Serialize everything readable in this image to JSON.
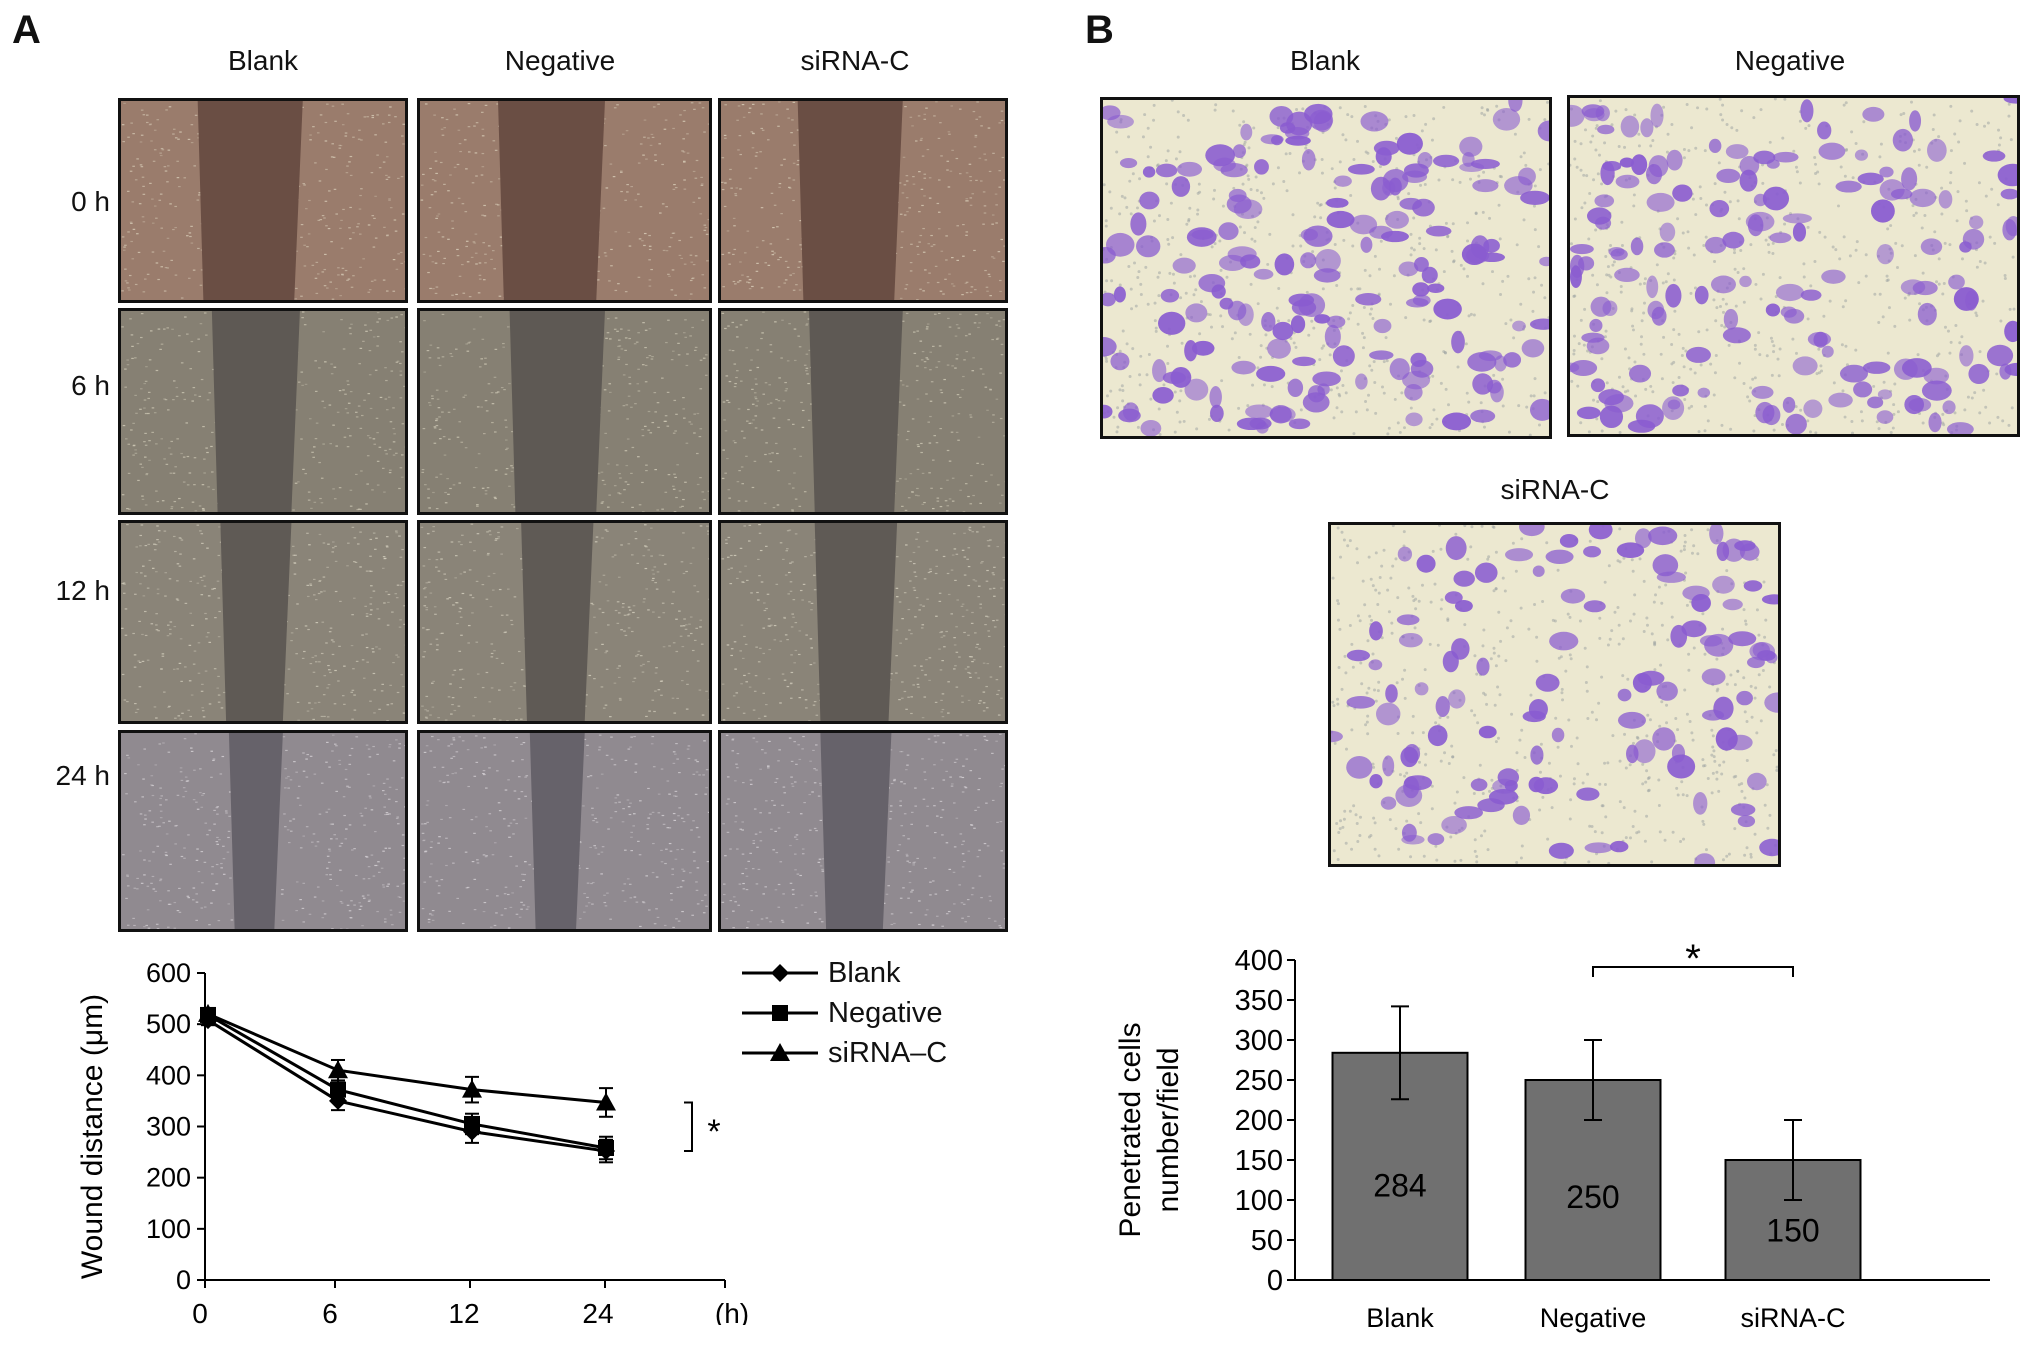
{
  "panelA": {
    "letter": "A",
    "columns": [
      "Blank",
      "Negative",
      "siRNA-C"
    ],
    "rows": [
      "0 h",
      "6 h",
      "12 h",
      "24 h"
    ],
    "gaps": [
      [
        0.34,
        0.34,
        0.34
      ],
      [
        0.28,
        0.3,
        0.3
      ],
      [
        0.22,
        0.22,
        0.26
      ],
      [
        0.16,
        0.16,
        0.22
      ]
    ]
  },
  "panelB": {
    "letter": "B",
    "images": [
      "Blank",
      "Negative",
      "siRNA-C"
    ]
  },
  "colors": {
    "line": "#000000",
    "bar": "#707070",
    "stain": "#8a5cd0",
    "membrane": "#ece8d0"
  },
  "chart_data": [
    {
      "type": "line",
      "x": [
        "0",
        "6",
        "12",
        "24"
      ],
      "xunit": "(h)",
      "ylabel": "Wound distance (μm)",
      "ylim": [
        0,
        600
      ],
      "yticks": [
        0,
        100,
        200,
        300,
        400,
        500,
        600
      ],
      "series": [
        {
          "name": "Blank",
          "marker": "diamond",
          "values": [
            508,
            350,
            290,
            252
          ],
          "errors": [
            10,
            18,
            22,
            22
          ]
        },
        {
          "name": "Negative",
          "marker": "square",
          "values": [
            518,
            372,
            305,
            258
          ],
          "errors": [
            10,
            18,
            20,
            22
          ]
        },
        {
          "name": "siRNA–C",
          "marker": "triangle",
          "values": [
            520,
            410,
            372,
            347
          ],
          "errors": [
            10,
            20,
            25,
            28
          ]
        }
      ],
      "annotation": "*",
      "legend_position": "top-right"
    },
    {
      "type": "bar",
      "categories": [
        "Blank",
        "Negative",
        "siRNA-C"
      ],
      "values": [
        284,
        250,
        150
      ],
      "errors": [
        58,
        50,
        50
      ],
      "value_labels": [
        "284",
        "250",
        "150"
      ],
      "ylabel_lines": [
        "Penetrated cells",
        "number/field"
      ],
      "ylim": [
        0,
        400
      ],
      "yticks": [
        0,
        50,
        100,
        150,
        200,
        250,
        300,
        350,
        400
      ],
      "annotation": "*"
    }
  ]
}
